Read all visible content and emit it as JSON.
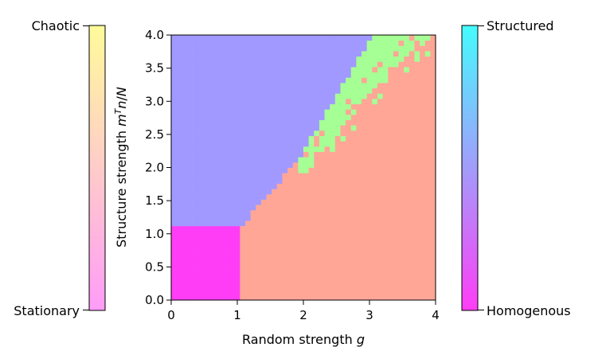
{
  "chart_data": {
    "type": "heatmap",
    "title": "",
    "xlabel_main": "Random strength ",
    "xlabel_var": "g",
    "ylabel_main": "Structure strength ",
    "ylabel_m": "m",
    "ylabel_sup": "T",
    "ylabel_n": "n",
    "ylabel_slash": "/",
    "ylabel_N": "N",
    "xlim": [
      0,
      4
    ],
    "ylim": [
      0,
      4
    ],
    "x_ticks": [
      "0",
      "1",
      "2",
      "3",
      "4"
    ],
    "y_ticks": [
      "0.0",
      "0.5",
      "1.0",
      "1.5",
      "2.0",
      "2.5",
      "3.0",
      "3.5",
      "4.0"
    ],
    "grid": false,
    "grid_resolution": 50,
    "regions": [
      {
        "name": "stationary-homogeneous",
        "color": "#ff3df6",
        "g_range": [
          0,
          1.05
        ],
        "s_range": [
          0,
          1.12
        ]
      },
      {
        "name": "chaotic-homogeneous",
        "color": "#ffa697"
      },
      {
        "name": "stationary-structured",
        "color": "#a199ff"
      },
      {
        "name": "chaotic-structured",
        "color": "#a6ff94"
      }
    ],
    "boundaries": {
      "structured_onset": [
        [
          1.05,
          1.12
        ],
        [
          1.5,
          1.6
        ],
        [
          2.0,
          2.25
        ],
        [
          2.5,
          3.1
        ],
        [
          3.0,
          3.9
        ],
        [
          3.1,
          4.0
        ]
      ],
      "chaotic_structured_upper": [
        [
          2.0,
          1.9
        ],
        [
          2.5,
          2.45
        ],
        [
          3.0,
          3.1
        ],
        [
          3.5,
          3.6
        ],
        [
          4.0,
          4.0
        ]
      ]
    },
    "colorbars": [
      {
        "side": "left",
        "top_label": "Chaotic",
        "bottom_label": "Stationary",
        "color_top": "#fffb9a",
        "color_bottom": "#ff9cf8"
      },
      {
        "side": "right",
        "top_label": "Structured",
        "bottom_label": "Homogenous",
        "color_top": "#45fbff",
        "color_bottom": "#ff3df6"
      }
    ]
  }
}
